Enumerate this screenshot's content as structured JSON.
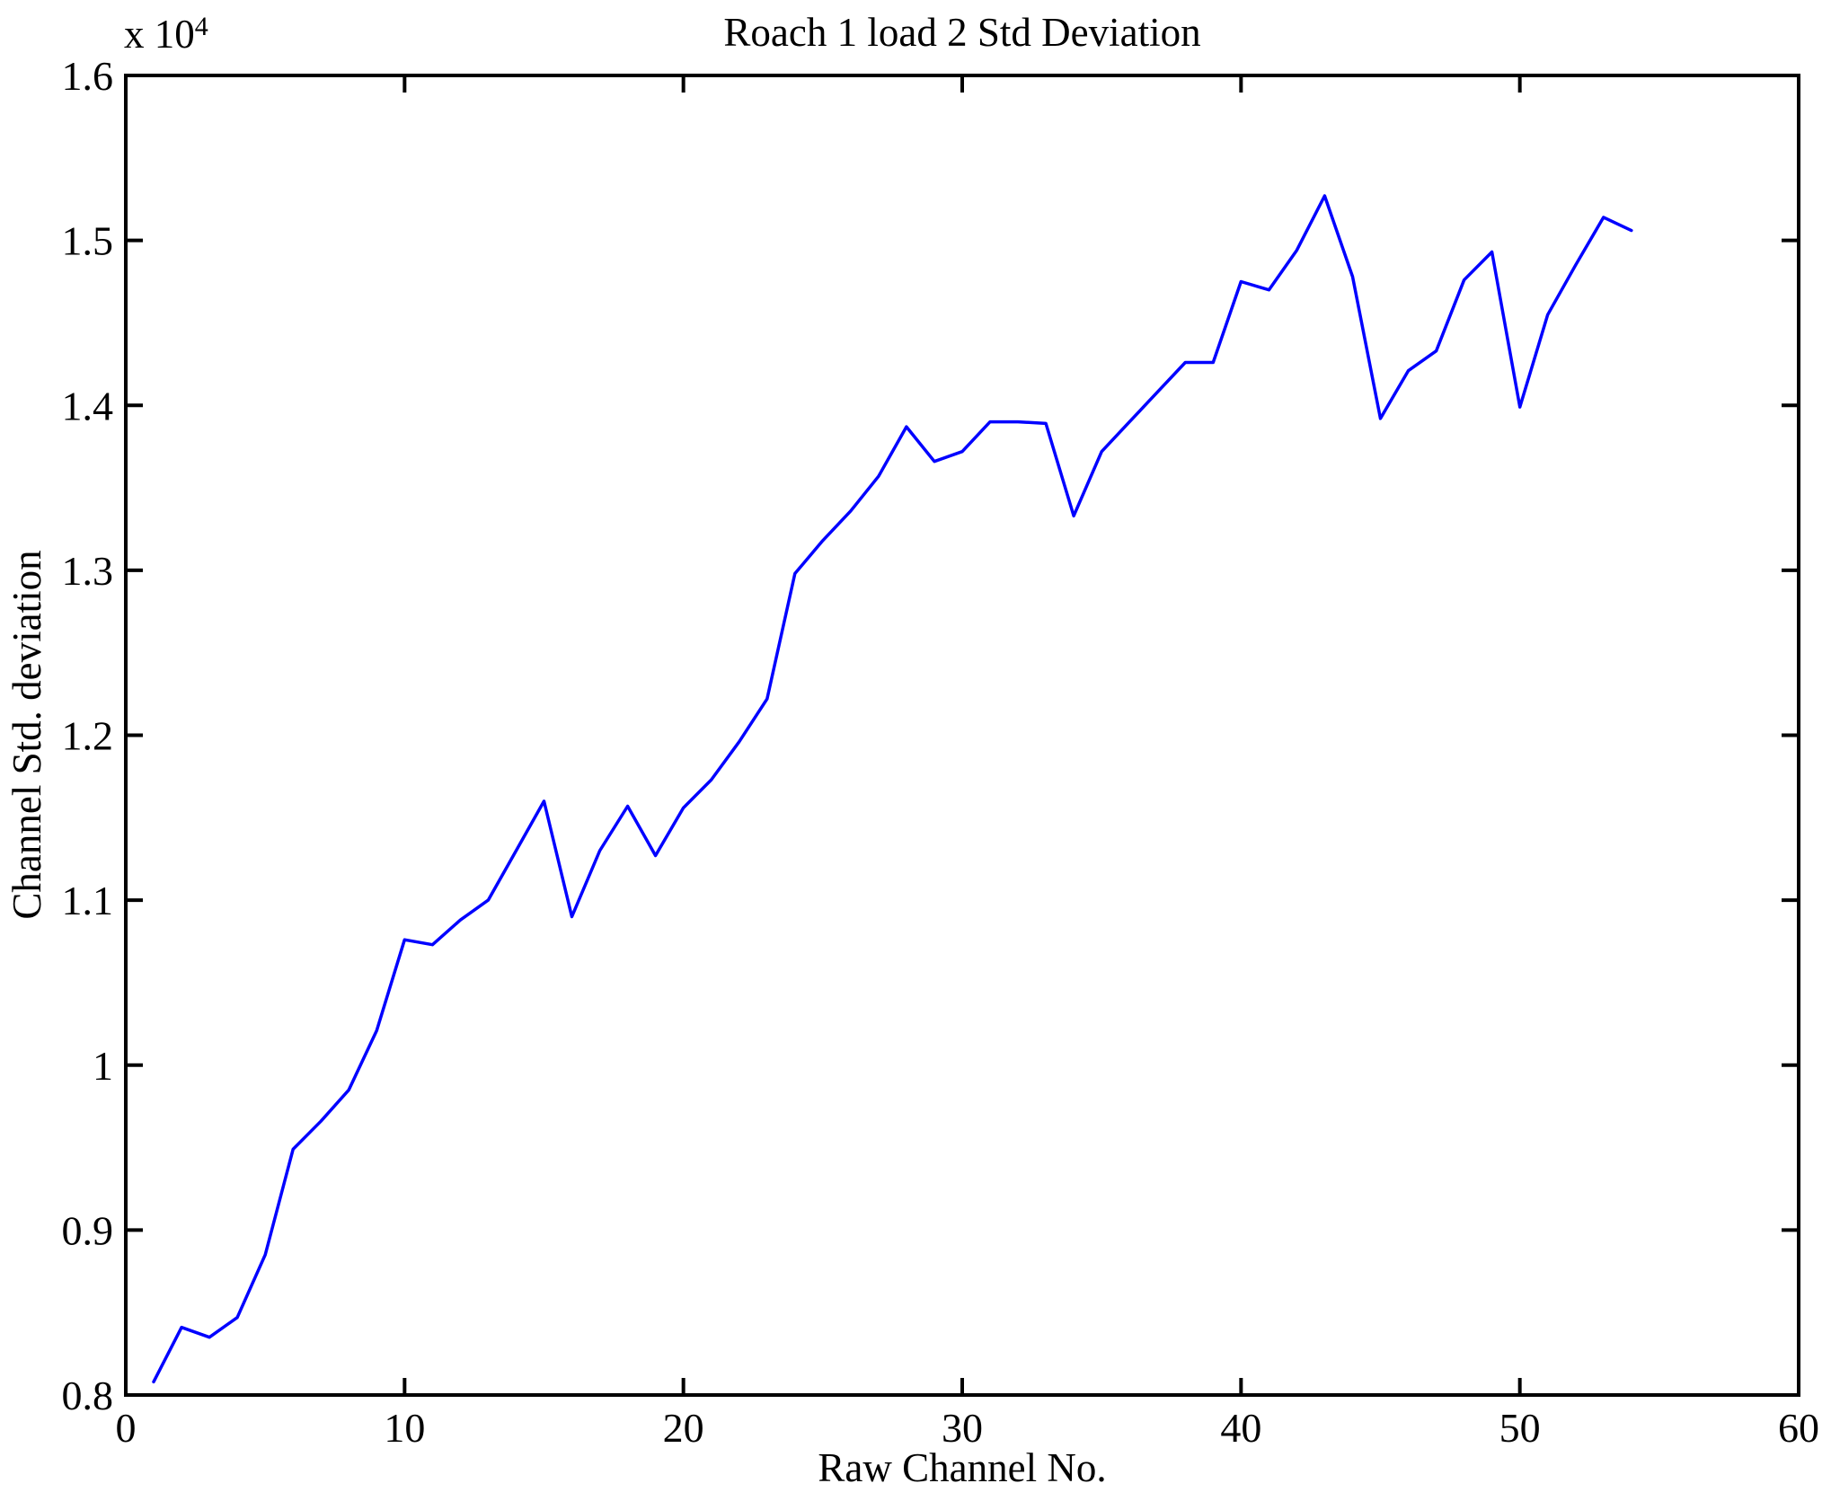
{
  "figure": {
    "title": "Roach 1 load 2 Std Deviation",
    "xlabel": "Raw Channel No.",
    "ylabel": "Channel Std. deviation",
    "y_scale_label": "x 10",
    "y_scale_exponent": "4"
  },
  "colors": {
    "line": "#0000FF",
    "axis": "#000000",
    "background": "#FFFFFF"
  },
  "chart_data": {
    "type": "line",
    "title": "Roach 1 load 2 Std Deviation",
    "xlabel": "Raw Channel No.",
    "ylabel": "Channel Std. deviation",
    "y_scale_label": "x 10^4",
    "grid": false,
    "legend": null,
    "xlim": [
      0,
      60
    ],
    "ylim": [
      8000,
      16000
    ],
    "xticks": [
      0,
      10,
      20,
      30,
      40,
      50,
      60
    ],
    "xtick_labels": [
      "0",
      "10",
      "20",
      "30",
      "40",
      "50",
      "60"
    ],
    "yticks": [
      8000,
      9000,
      10000,
      11000,
      12000,
      13000,
      14000,
      15000,
      16000
    ],
    "ytick_labels": [
      "0.8",
      "0.9",
      "1",
      "1.1",
      "1.2",
      "1.3",
      "1.4",
      "1.5",
      "1.6"
    ],
    "x": [
      1,
      2,
      3,
      4,
      5,
      6,
      7,
      8,
      9,
      10,
      11,
      12,
      13,
      14,
      15,
      16,
      17,
      18,
      19,
      20,
      21,
      22,
      23,
      24,
      25,
      26,
      27,
      28,
      29,
      30,
      31,
      32,
      33,
      34,
      35,
      36,
      37,
      38,
      39,
      40,
      41,
      42,
      43,
      44,
      45,
      46,
      47,
      48,
      49,
      50,
      51,
      52,
      53,
      54
    ],
    "values": [
      8080,
      8410,
      8350,
      8470,
      8850,
      9490,
      9660,
      9850,
      10210,
      10760,
      10730,
      10880,
      11000,
      11300,
      11600,
      10900,
      11300,
      11570,
      11270,
      11560,
      11730,
      11960,
      12220,
      12980,
      13180,
      13360,
      13570,
      13870,
      13660,
      13720,
      13900,
      13900,
      13890,
      13330,
      13720,
      13900,
      14080,
      14260,
      14260,
      14750,
      14700,
      14940,
      15270,
      14780,
      13920,
      14210,
      14330,
      14760,
      14930,
      13990,
      14550,
      14850,
      15140,
      15060
    ]
  }
}
